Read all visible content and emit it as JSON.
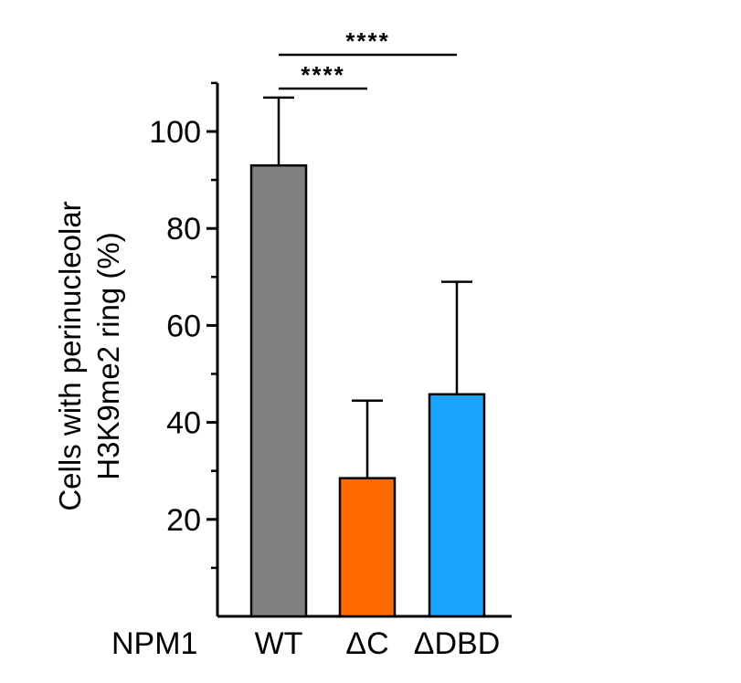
{
  "chart_data": {
    "type": "bar",
    "title": "",
    "group_label": "NPM1",
    "categories": [
      "WT",
      "ΔC",
      "ΔDBD"
    ],
    "values": [
      93,
      28.5,
      45.8
    ],
    "error_upper": [
      107,
      44.5,
      69
    ],
    "colors": [
      "#808080",
      "#ff6a00",
      "#1aa3ff"
    ],
    "ylabel_lines": [
      "Cells with perinucleolar",
      "H3K9me2 ring (%)"
    ],
    "ylim": [
      0,
      110
    ],
    "yticks": [
      20,
      40,
      60,
      80,
      100
    ],
    "yticks_minor": [
      10,
      30,
      50,
      70,
      90,
      110
    ],
    "grid": false,
    "significance": [
      {
        "from": "WT",
        "to": "ΔC",
        "label": "****"
      },
      {
        "from": "WT",
        "to": "ΔDBD",
        "label": "****"
      }
    ]
  }
}
